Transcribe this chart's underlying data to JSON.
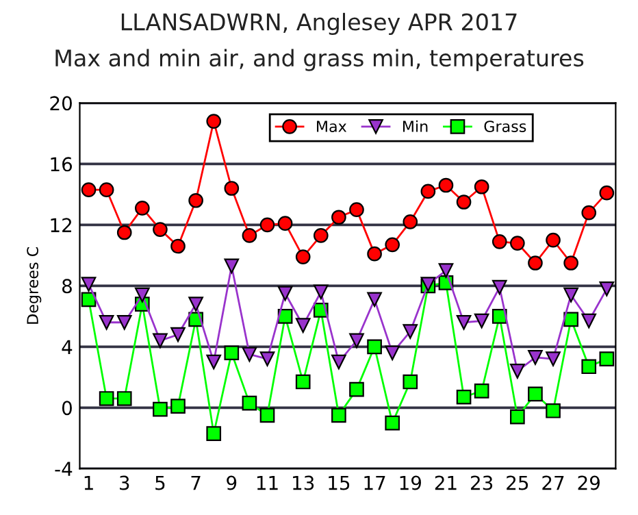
{
  "chart_data": {
    "type": "line",
    "title": "LLANSADWRN, Anglesey APR 2017",
    "subtitle": "Max and min air, and grass min, temperatures",
    "ylabel": "Degrees C",
    "x": [
      1,
      2,
      3,
      4,
      5,
      6,
      7,
      8,
      9,
      10,
      11,
      12,
      13,
      14,
      15,
      16,
      17,
      18,
      19,
      20,
      21,
      22,
      23,
      24,
      25,
      26,
      27,
      28,
      29,
      30
    ],
    "series": [
      {
        "name": "Max",
        "color": "#ff0000",
        "marker": "circle",
        "values": [
          14.3,
          14.3,
          11.5,
          13.1,
          11.7,
          10.6,
          13.6,
          18.8,
          14.4,
          11.3,
          12.0,
          12.1,
          9.9,
          11.3,
          12.5,
          13.0,
          10.1,
          10.7,
          12.2,
          14.2,
          14.6,
          13.5,
          14.5,
          10.9,
          10.8,
          9.5,
          11.0,
          9.5,
          12.8,
          14.1
        ]
      },
      {
        "name": "Min",
        "color": "#9933cc",
        "marker": "triangle",
        "values": [
          8.1,
          5.6,
          5.6,
          7.4,
          4.4,
          4.8,
          6.8,
          3.0,
          9.3,
          3.5,
          3.2,
          7.5,
          5.4,
          7.6,
          3.0,
          4.4,
          7.1,
          3.6,
          5.0,
          8.1,
          9.0,
          5.6,
          5.7,
          7.9,
          2.4,
          3.3,
          3.2,
          7.4,
          5.7,
          7.8
        ]
      },
      {
        "name": "Grass",
        "color": "#00ff00",
        "marker": "square",
        "values": [
          7.1,
          0.6,
          0.6,
          6.8,
          -0.1,
          0.1,
          5.8,
          -1.7,
          3.6,
          0.3,
          -0.5,
          6.0,
          1.7,
          6.4,
          -0.5,
          1.2,
          4.0,
          -1.0,
          1.7,
          8.0,
          8.2,
          0.7,
          1.1,
          6.0,
          -0.6,
          0.9,
          -0.2,
          5.8,
          2.7,
          3.2
        ]
      }
    ],
    "xlim": [
      0.5,
      30.5
    ],
    "xticks": [
      1,
      3,
      5,
      7,
      9,
      11,
      13,
      15,
      17,
      19,
      21,
      23,
      25,
      27,
      29
    ],
    "ylim": [
      -4,
      20
    ],
    "yticks": [
      -4,
      0,
      4,
      8,
      12,
      16,
      20
    ],
    "grid": "y",
    "legend": "top",
    "line_style": "solid"
  }
}
